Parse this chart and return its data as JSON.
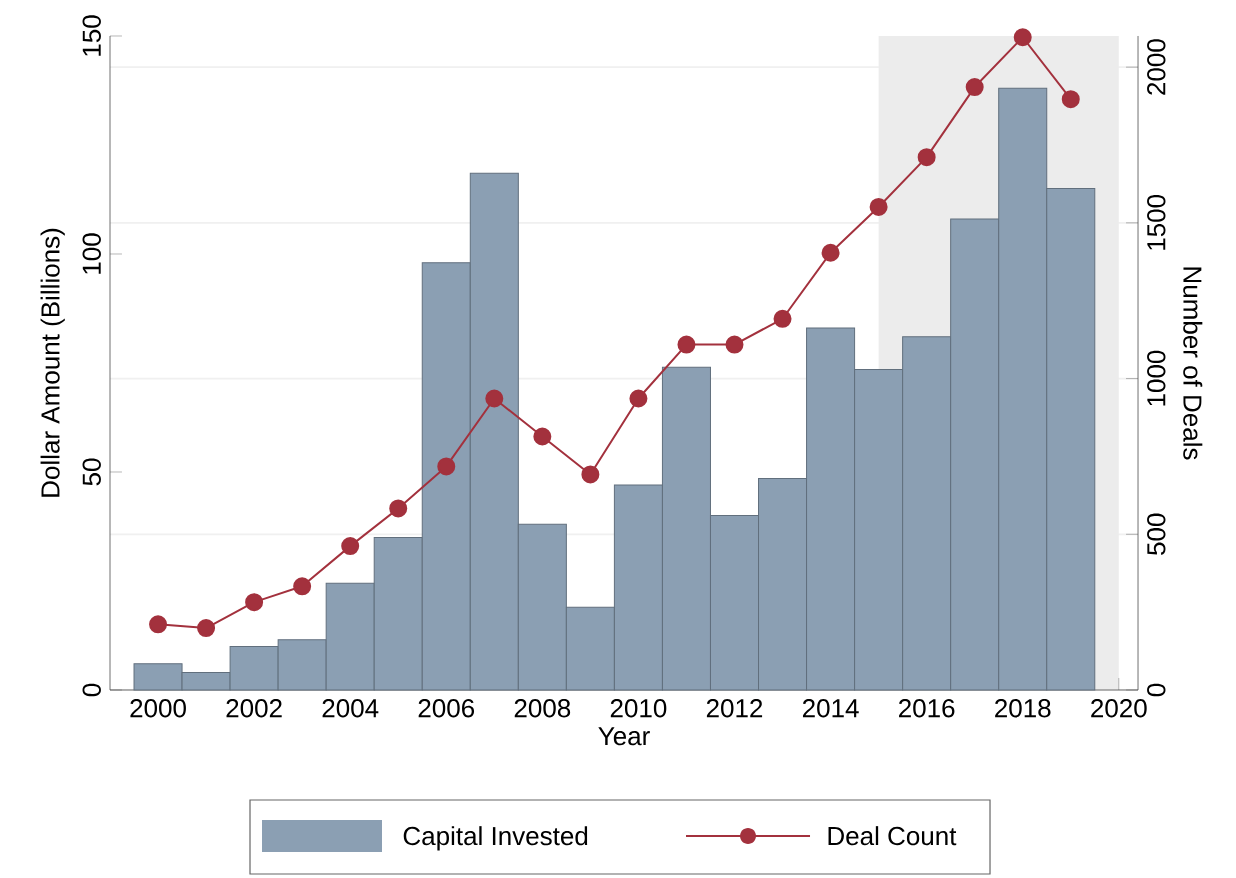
{
  "chart_data": {
    "type": "bar",
    "x": [
      2000,
      2001,
      2002,
      2003,
      2004,
      2005,
      2006,
      2007,
      2008,
      2009,
      2010,
      2011,
      2012,
      2013,
      2014,
      2015,
      2016,
      2017,
      2018,
      2019
    ],
    "series": [
      {
        "name": "Capital Invested",
        "color": "#8b9fb3",
        "values": [
          6,
          4,
          10,
          11.5,
          24.5,
          35,
          98,
          118.5,
          38,
          19,
          47,
          74,
          40,
          48.5,
          83,
          73.5,
          81,
          108,
          138,
          115
        ]
      },
      {
        "name": "Deal Count",
        "type": "line",
        "axis": "y2",
        "color": "#a3313d",
        "marker": "circle",
        "values": [
          211,
          199,
          282,
          333,
          462,
          583,
          718,
          936,
          814,
          692,
          936,
          1109,
          1109,
          1192,
          1404,
          1551,
          1711,
          1936,
          2096,
          1897
        ]
      }
    ],
    "xlabel": "Year",
    "ylabel": "Dollar Amount (Billions)",
    "y2label": "Number of Deals",
    "xlim": [
      1999,
      2020.4
    ],
    "xticks": [
      2000,
      2002,
      2004,
      2006,
      2008,
      2010,
      2012,
      2014,
      2016,
      2018,
      2020
    ],
    "ylim": [
      0,
      150
    ],
    "yticks": [
      0,
      50,
      100,
      150
    ],
    "y2lim": [
      0,
      2100
    ],
    "y2ticks": [
      0,
      500,
      1000,
      1500,
      2000
    ],
    "bands": [
      {
        "axis": "x",
        "from": 2015,
        "to": 2020,
        "color": "#ececec"
      }
    ],
    "grid": "y2",
    "legend": "bottom"
  }
}
